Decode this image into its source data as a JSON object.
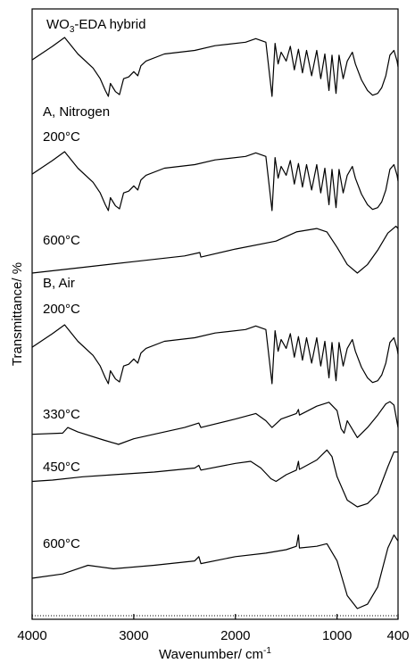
{
  "chart_data": {
    "type": "line",
    "title": "",
    "xlabel": "Wavenumber/ cm",
    "xlabel_superscript": "-1",
    "ylabel": "Transmittance/ %",
    "xlim": [
      4000,
      400
    ],
    "x_reversed": true,
    "x_ticks": [
      4000,
      3000,
      2000,
      1000,
      400
    ],
    "x_tick_labels": [
      "4000",
      "3000",
      "2000",
      "1000",
      "400"
    ],
    "grid": false,
    "legend": "none",
    "labels": [
      {
        "id": "hybrid",
        "text": "WO",
        "sub": "3",
        "text_after": "-EDA hybrid"
      },
      {
        "id": "nitrogen_header",
        "text": "A, Nitrogen"
      },
      {
        "id": "n200",
        "text": "200°C"
      },
      {
        "id": "n600",
        "text": "600°C"
      },
      {
        "id": "air_header",
        "text": "B, Air"
      },
      {
        "id": "a200",
        "text": "200°C"
      },
      {
        "id": "a330",
        "text": "330°C"
      },
      {
        "id": "a450",
        "text": "450°C"
      },
      {
        "id": "a600",
        "text": "600°C"
      }
    ],
    "series": [
      {
        "id": "hybrid",
        "points": [
          [
            4000,
            0.62
          ],
          [
            3800,
            0.85
          ],
          [
            3680,
            1.0
          ],
          [
            3550,
            0.72
          ],
          [
            3400,
            0.48
          ],
          [
            3330,
            0.3
          ],
          [
            3280,
            0.1
          ],
          [
            3250,
            0.0
          ],
          [
            3230,
            0.22
          ],
          [
            3180,
            0.08
          ],
          [
            3140,
            0.03
          ],
          [
            3100,
            0.3
          ],
          [
            3050,
            0.33
          ],
          [
            3000,
            0.42
          ],
          [
            2960,
            0.35
          ],
          [
            2930,
            0.52
          ],
          [
            2880,
            0.6
          ],
          [
            2700,
            0.72
          ],
          [
            2400,
            0.78
          ],
          [
            2200,
            0.86
          ],
          [
            1900,
            0.92
          ],
          [
            1800,
            0.98
          ],
          [
            1700,
            0.92
          ],
          [
            1640,
            0.0
          ],
          [
            1610,
            0.9
          ],
          [
            1580,
            0.55
          ],
          [
            1550,
            0.75
          ],
          [
            1500,
            0.6
          ],
          [
            1460,
            0.85
          ],
          [
            1420,
            0.45
          ],
          [
            1380,
            0.8
          ],
          [
            1340,
            0.4
          ],
          [
            1300,
            0.78
          ],
          [
            1250,
            0.35
          ],
          [
            1200,
            0.78
          ],
          [
            1160,
            0.3
          ],
          [
            1120,
            0.72
          ],
          [
            1080,
            0.1
          ],
          [
            1050,
            0.7
          ],
          [
            1010,
            0.05
          ],
          [
            980,
            0.7
          ],
          [
            940,
            0.3
          ],
          [
            900,
            0.6
          ],
          [
            850,
            0.75
          ],
          [
            820,
            0.55
          ],
          [
            760,
            0.28
          ],
          [
            700,
            0.1
          ],
          [
            650,
            0.02
          ],
          [
            600,
            0.05
          ],
          [
            560,
            0.15
          ],
          [
            520,
            0.35
          ],
          [
            480,
            0.7
          ],
          [
            440,
            0.78
          ],
          [
            410,
            0.6
          ],
          [
            400,
            0.5
          ]
        ]
      },
      {
        "id": "n200",
        "points": [
          [
            4000,
            0.62
          ],
          [
            3800,
            0.85
          ],
          [
            3680,
            1.0
          ],
          [
            3550,
            0.72
          ],
          [
            3400,
            0.48
          ],
          [
            3330,
            0.3
          ],
          [
            3280,
            0.1
          ],
          [
            3250,
            0.0
          ],
          [
            3230,
            0.22
          ],
          [
            3180,
            0.08
          ],
          [
            3140,
            0.03
          ],
          [
            3100,
            0.3
          ],
          [
            3050,
            0.33
          ],
          [
            3000,
            0.42
          ],
          [
            2960,
            0.35
          ],
          [
            2930,
            0.52
          ],
          [
            2880,
            0.6
          ],
          [
            2700,
            0.72
          ],
          [
            2400,
            0.78
          ],
          [
            2200,
            0.86
          ],
          [
            1900,
            0.92
          ],
          [
            1800,
            0.98
          ],
          [
            1700,
            0.92
          ],
          [
            1640,
            0.0
          ],
          [
            1610,
            0.9
          ],
          [
            1580,
            0.55
          ],
          [
            1550,
            0.75
          ],
          [
            1500,
            0.6
          ],
          [
            1460,
            0.85
          ],
          [
            1420,
            0.45
          ],
          [
            1380,
            0.8
          ],
          [
            1340,
            0.4
          ],
          [
            1300,
            0.78
          ],
          [
            1250,
            0.35
          ],
          [
            1200,
            0.78
          ],
          [
            1160,
            0.3
          ],
          [
            1120,
            0.72
          ],
          [
            1080,
            0.1
          ],
          [
            1050,
            0.7
          ],
          [
            1010,
            0.05
          ],
          [
            980,
            0.7
          ],
          [
            940,
            0.3
          ],
          [
            900,
            0.6
          ],
          [
            850,
            0.75
          ],
          [
            820,
            0.55
          ],
          [
            760,
            0.28
          ],
          [
            700,
            0.1
          ],
          [
            650,
            0.02
          ],
          [
            600,
            0.05
          ],
          [
            560,
            0.15
          ],
          [
            520,
            0.35
          ],
          [
            480,
            0.7
          ],
          [
            440,
            0.78
          ],
          [
            410,
            0.6
          ],
          [
            400,
            0.5
          ]
        ]
      },
      {
        "id": "n600",
        "points": [
          [
            4000,
            0.0
          ],
          [
            3500,
            0.1
          ],
          [
            3000,
            0.2
          ],
          [
            2500,
            0.3
          ],
          [
            2350,
            0.36
          ],
          [
            2340,
            0.28
          ],
          [
            2000,
            0.42
          ],
          [
            1600,
            0.56
          ],
          [
            1400,
            0.72
          ],
          [
            1200,
            0.78
          ],
          [
            1100,
            0.72
          ],
          [
            1000,
            0.45
          ],
          [
            900,
            0.15
          ],
          [
            800,
            0.0
          ],
          [
            700,
            0.15
          ],
          [
            600,
            0.4
          ],
          [
            500,
            0.7
          ],
          [
            420,
            0.82
          ],
          [
            400,
            0.78
          ]
        ]
      },
      {
        "id": "a200",
        "points": [
          [
            4000,
            0.62
          ],
          [
            3800,
            0.85
          ],
          [
            3680,
            1.0
          ],
          [
            3550,
            0.72
          ],
          [
            3400,
            0.48
          ],
          [
            3330,
            0.3
          ],
          [
            3280,
            0.1
          ],
          [
            3250,
            0.0
          ],
          [
            3230,
            0.22
          ],
          [
            3180,
            0.08
          ],
          [
            3140,
            0.03
          ],
          [
            3100,
            0.3
          ],
          [
            3050,
            0.33
          ],
          [
            3000,
            0.42
          ],
          [
            2960,
            0.35
          ],
          [
            2930,
            0.52
          ],
          [
            2880,
            0.6
          ],
          [
            2700,
            0.72
          ],
          [
            2400,
            0.78
          ],
          [
            2200,
            0.86
          ],
          [
            1900,
            0.92
          ],
          [
            1800,
            0.98
          ],
          [
            1700,
            0.92
          ],
          [
            1640,
            0.0
          ],
          [
            1610,
            0.9
          ],
          [
            1580,
            0.55
          ],
          [
            1550,
            0.75
          ],
          [
            1500,
            0.6
          ],
          [
            1460,
            0.85
          ],
          [
            1420,
            0.45
          ],
          [
            1380,
            0.8
          ],
          [
            1340,
            0.4
          ],
          [
            1300,
            0.78
          ],
          [
            1250,
            0.35
          ],
          [
            1200,
            0.78
          ],
          [
            1160,
            0.3
          ],
          [
            1120,
            0.72
          ],
          [
            1080,
            0.1
          ],
          [
            1050,
            0.7
          ],
          [
            1010,
            0.05
          ],
          [
            980,
            0.7
          ],
          [
            940,
            0.3
          ],
          [
            900,
            0.6
          ],
          [
            850,
            0.75
          ],
          [
            820,
            0.55
          ],
          [
            760,
            0.28
          ],
          [
            700,
            0.1
          ],
          [
            650,
            0.02
          ],
          [
            600,
            0.05
          ],
          [
            560,
            0.15
          ],
          [
            520,
            0.35
          ],
          [
            480,
            0.7
          ],
          [
            440,
            0.78
          ],
          [
            410,
            0.6
          ],
          [
            400,
            0.5
          ]
        ]
      },
      {
        "id": "a330",
        "points": [
          [
            4000,
            0.18
          ],
          [
            3700,
            0.2
          ],
          [
            3650,
            0.3
          ],
          [
            3550,
            0.22
          ],
          [
            3300,
            0.08
          ],
          [
            3150,
            0.0
          ],
          [
            3000,
            0.1
          ],
          [
            2500,
            0.3
          ],
          [
            2360,
            0.38
          ],
          [
            2340,
            0.3
          ],
          [
            2000,
            0.45
          ],
          [
            1800,
            0.55
          ],
          [
            1700,
            0.42
          ],
          [
            1640,
            0.3
          ],
          [
            1550,
            0.45
          ],
          [
            1400,
            0.55
          ],
          [
            1380,
            0.62
          ],
          [
            1370,
            0.52
          ],
          [
            1200,
            0.68
          ],
          [
            1080,
            0.75
          ],
          [
            1000,
            0.6
          ],
          [
            960,
            0.28
          ],
          [
            930,
            0.2
          ],
          [
            900,
            0.42
          ],
          [
            860,
            0.3
          ],
          [
            800,
            0.12
          ],
          [
            700,
            0.3
          ],
          [
            600,
            0.52
          ],
          [
            520,
            0.72
          ],
          [
            480,
            0.76
          ],
          [
            440,
            0.7
          ],
          [
            400,
            0.3
          ]
        ]
      },
      {
        "id": "a450",
        "points": [
          [
            4000,
            0.38
          ],
          [
            3800,
            0.4
          ],
          [
            3500,
            0.45
          ],
          [
            3200,
            0.48
          ],
          [
            2800,
            0.52
          ],
          [
            2400,
            0.58
          ],
          [
            2360,
            0.62
          ],
          [
            2340,
            0.55
          ],
          [
            2000,
            0.65
          ],
          [
            1850,
            0.68
          ],
          [
            1750,
            0.58
          ],
          [
            1650,
            0.42
          ],
          [
            1600,
            0.38
          ],
          [
            1500,
            0.48
          ],
          [
            1400,
            0.55
          ],
          [
            1380,
            0.68
          ],
          [
            1370,
            0.56
          ],
          [
            1200,
            0.7
          ],
          [
            1100,
            0.85
          ],
          [
            1050,
            0.75
          ],
          [
            1000,
            0.45
          ],
          [
            900,
            0.1
          ],
          [
            800,
            0.0
          ],
          [
            700,
            0.05
          ],
          [
            600,
            0.2
          ],
          [
            500,
            0.6
          ],
          [
            440,
            0.82
          ],
          [
            400,
            0.82
          ]
        ]
      },
      {
        "id": "a600",
        "points": [
          [
            4000,
            0.35
          ],
          [
            3700,
            0.4
          ],
          [
            3450,
            0.5
          ],
          [
            3200,
            0.46
          ],
          [
            2800,
            0.5
          ],
          [
            2400,
            0.55
          ],
          [
            2360,
            0.6
          ],
          [
            2340,
            0.52
          ],
          [
            2000,
            0.6
          ],
          [
            1700,
            0.64
          ],
          [
            1500,
            0.68
          ],
          [
            1400,
            0.72
          ],
          [
            1380,
            0.85
          ],
          [
            1370,
            0.7
          ],
          [
            1200,
            0.72
          ],
          [
            1100,
            0.75
          ],
          [
            1000,
            0.55
          ],
          [
            900,
            0.15
          ],
          [
            800,
            0.0
          ],
          [
            700,
            0.05
          ],
          [
            600,
            0.25
          ],
          [
            500,
            0.7
          ],
          [
            440,
            0.85
          ],
          [
            400,
            0.78
          ]
        ]
      }
    ]
  }
}
